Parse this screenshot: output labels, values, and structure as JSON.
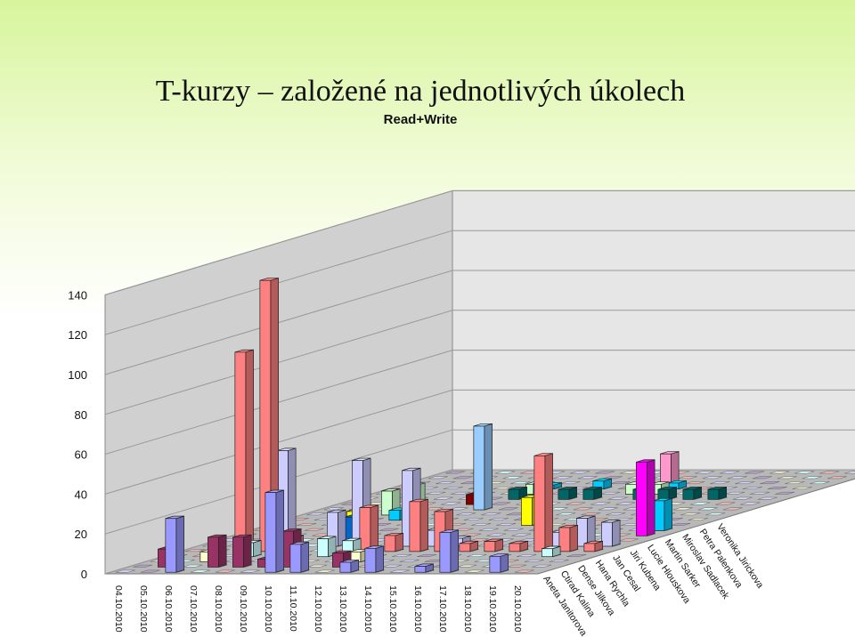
{
  "chart_data": {
    "type": "bar",
    "title": "T-kurzy  –  založené na jednotlivých úkolech",
    "subtitle": "Read+Write",
    "ylim": [
      0,
      140
    ],
    "yticks": [
      0,
      20,
      40,
      60,
      80,
      100,
      120,
      140
    ],
    "grid": true,
    "categories": [
      "04.10.2010",
      "05.10.2010",
      "06.10.2010",
      "07.10.2010",
      "08.10.2010",
      "09.10.2010",
      "10.10.2010",
      "11.10.2010",
      "12.10.2010",
      "13.10.2010",
      "14.10.2010",
      "15.10.2010",
      "16.10.2010",
      "17.10.2010",
      "18.10.2010",
      "19.10.2010",
      "20.10.2010"
    ],
    "series": [
      {
        "name": "Aneta Janitorova",
        "color": "#9999ff",
        "values": [
          0,
          0,
          27,
          0,
          0,
          0,
          40,
          14,
          0,
          5,
          12,
          0,
          3,
          20,
          0,
          8,
          0
        ]
      },
      {
        "name": "Ctirad Kalina",
        "color": "#993366",
        "values": [
          0,
          9,
          0,
          15,
          15,
          4,
          18,
          0,
          7,
          0,
          0,
          0,
          0,
          0,
          0,
          0,
          0
        ]
      },
      {
        "name": "Dense Jilkova",
        "color": "#ffffcc",
        "values": [
          0,
          0,
          5,
          0,
          0,
          0,
          0,
          0,
          5,
          0,
          0,
          0,
          0,
          0,
          0,
          0,
          0
        ]
      },
      {
        "name": "Hana Rychla",
        "color": "#ccffff",
        "values": [
          0,
          0,
          0,
          7,
          8,
          0,
          9,
          8,
          0,
          0,
          0,
          0,
          0,
          0,
          0,
          4,
          0
        ]
      },
      {
        "name": "Jan Cesal",
        "color": "#ff8080",
        "values": [
          0,
          0,
          100,
          136,
          7,
          0,
          0,
          22,
          8,
          25,
          20,
          4,
          5,
          4,
          48,
          12,
          4
        ]
      },
      {
        "name": "Jiri Kubena",
        "color": "#ccccff",
        "values": [
          0,
          0,
          0,
          48,
          0,
          17,
          43,
          0,
          38,
          8,
          4,
          0,
          0,
          0,
          7,
          14,
          12
        ]
      },
      {
        "name": "Lucie Hlouskova",
        "color": "#0066cc",
        "values": [
          0,
          0,
          0,
          0,
          0,
          12,
          0,
          0,
          0,
          0,
          0,
          0,
          0,
          0,
          0,
          0,
          0
        ]
      },
      {
        "name": "Martin Sarker",
        "color": "#ff00ff",
        "values": [
          0,
          0,
          0,
          0,
          0,
          0,
          0,
          0,
          0,
          0,
          0,
          0,
          0,
          0,
          0,
          0,
          37
        ]
      },
      {
        "name": "Miroslav Sadlacek",
        "color": "#00ccff",
        "values": [
          0,
          0,
          0,
          0,
          0,
          0,
          0,
          0,
          0,
          0,
          0,
          0,
          0,
          0,
          0,
          0,
          15
        ]
      },
      {
        "name": "Petra Palenkova",
        "color": "#ffff00",
        "values": [
          0,
          0,
          0,
          7,
          0,
          0,
          0,
          0,
          0,
          0,
          14,
          0,
          0,
          0,
          0,
          0,
          0
        ]
      },
      {
        "name": "Veronika Jirickova",
        "color": "#00ccff",
        "values": [
          0,
          0,
          0,
          0,
          5,
          0,
          0,
          0,
          0,
          0,
          0,
          0,
          0,
          0,
          0,
          0,
          0
        ]
      }
    ],
    "back_rows": {
      "r1": [
        0,
        0,
        0,
        12,
        15,
        0,
        0,
        0,
        0,
        0,
        0,
        0,
        0,
        0,
        0,
        0,
        0
      ],
      "r2": [
        0,
        0,
        0,
        0,
        0,
        0,
        42,
        0,
        0,
        0,
        0,
        0,
        0,
        0,
        0,
        0,
        0
      ],
      "r3": [
        0,
        0,
        0,
        0,
        0,
        5,
        0,
        0,
        0,
        0,
        0,
        0,
        0,
        0,
        0,
        0,
        0
      ],
      "r4": [
        0,
        0,
        0,
        0,
        0,
        0,
        5,
        8,
        5,
        5,
        0,
        5,
        5,
        5,
        5,
        0,
        0
      ],
      "r5": [
        0,
        0,
        0,
        0,
        0,
        0,
        5,
        0,
        0,
        0,
        5,
        5,
        0,
        0,
        0,
        0,
        0
      ],
      "r6": [
        0,
        0,
        0,
        0,
        0,
        0,
        2,
        0,
        4,
        0,
        0,
        3,
        0,
        0,
        0,
        0,
        0
      ],
      "r7": [
        0,
        0,
        0,
        0,
        0,
        0,
        0,
        0,
        0,
        0,
        15,
        0,
        0,
        0,
        0,
        0,
        0
      ],
      "r8": [
        0,
        0,
        0,
        0,
        0,
        0,
        0,
        0,
        0,
        0,
        0,
        0,
        0,
        0,
        0,
        0,
        0
      ],
      "r9": [
        0,
        0,
        0,
        0,
        0,
        0,
        0,
        0,
        0,
        0,
        0,
        0,
        0,
        0,
        0,
        0,
        0
      ],
      "r10": [
        0,
        0,
        0,
        0,
        0,
        0,
        0,
        0,
        0,
        0,
        0,
        0,
        0,
        0,
        0,
        0,
        0
      ]
    }
  }
}
